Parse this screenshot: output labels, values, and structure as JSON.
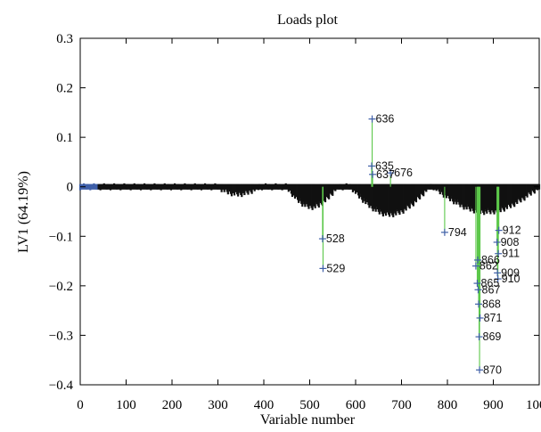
{
  "chart_data": {
    "type": "scatter",
    "title": "Loads plot",
    "xlabel": "Variable number",
    "ylabel": "LV1 (64.19%)",
    "xlim": [
      0,
      1000
    ],
    "ylim": [
      -0.4,
      0.3
    ],
    "x_ticks": [
      0,
      100,
      200,
      300,
      400,
      500,
      600,
      700,
      800,
      900,
      1000
    ],
    "y_ticks": [
      0.3,
      0.2,
      0.1,
      0,
      -0.1,
      -0.2,
      -0.3,
      -0.4
    ],
    "x_tick_labels": [
      "0",
      "100",
      "200",
      "300",
      "400",
      "500",
      "600",
      "700",
      "800",
      "900",
      "1000"
    ],
    "y_tick_labels": [
      "0.3",
      "0.2",
      "0.1",
      "0",
      "−0.1",
      "−0.2",
      "−0.3",
      "−0.4"
    ],
    "grid": false,
    "colors": {
      "stem": "#5cc84a",
      "point": "#3f5fa8",
      "dense_band": "#111111",
      "cyan": "#24b7d8"
    },
    "series": [
      {
        "points": [
          {
            "x": 636,
            "y": 0.137,
            "label": "636"
          },
          {
            "x": 635,
            "y": 0.042,
            "label": "635"
          },
          {
            "x": 637,
            "y": 0.025,
            "label": "637"
          },
          {
            "x": 676,
            "y": 0.028,
            "label": "676"
          },
          {
            "x": 528,
            "y": -0.105,
            "label": "528"
          },
          {
            "x": 529,
            "y": -0.165,
            "label": "529"
          },
          {
            "x": 794,
            "y": -0.092,
            "label": "794"
          },
          {
            "x": 912,
            "y": -0.088,
            "label": "912"
          },
          {
            "x": 908,
            "y": -0.112,
            "label": "908"
          },
          {
            "x": 911,
            "y": -0.135,
            "label": "911"
          },
          {
            "x": 866,
            "y": -0.148,
            "label": "866"
          },
          {
            "x": 862,
            "y": -0.16,
            "label": "862"
          },
          {
            "x": 909,
            "y": -0.174,
            "label": "909"
          },
          {
            "x": 910,
            "y": -0.186,
            "label": "910"
          },
          {
            "x": 865,
            "y": -0.195,
            "label": "865"
          },
          {
            "x": 867,
            "y": -0.208,
            "label": "867"
          },
          {
            "x": 868,
            "y": -0.237,
            "label": "868"
          },
          {
            "x": 871,
            "y": -0.265,
            "label": "871"
          },
          {
            "x": 869,
            "y": -0.303,
            "label": "869"
          },
          {
            "x": 870,
            "y": -0.37,
            "label": "870"
          }
        ]
      }
    ]
  }
}
